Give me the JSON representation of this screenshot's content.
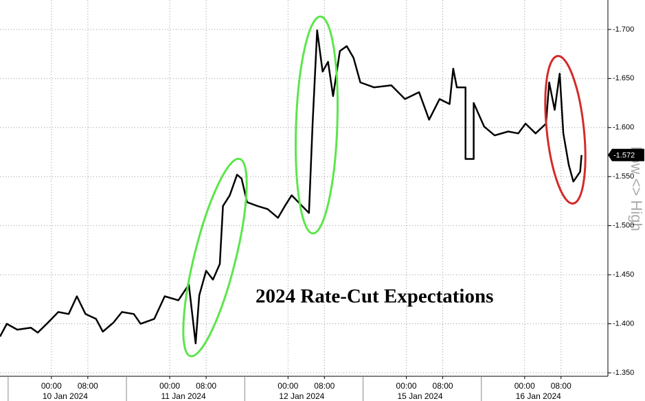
{
  "chart_data": {
    "type": "line",
    "annotation": "2024 Rate-Cut Expectations",
    "y_axis_label": "Low <> High",
    "grid": true,
    "x": [
      -11.3,
      -9.8,
      -7.5,
      -4.5,
      -3.0,
      -0.8,
      1.5,
      3.8,
      5.6,
      7.5,
      9.8,
      11.3,
      13.6,
      15.5,
      18.1,
      19.6,
      22.6,
      24.9,
      27.9,
      30.2,
      31.7,
      32.5,
      34.0,
      35.5,
      37.0,
      37.7,
      39.2,
      40.8,
      41.8,
      43.0,
      45.3,
      47.5,
      49.8,
      51.3,
      52.8,
      55.1,
      56.6,
      57.4,
      58.4,
      59.6,
      60.8,
      61.9,
      63.4,
      64.9,
      66.4,
      67.9,
      70.9,
      74.7,
      77.7,
      80.8,
      83.0,
      85.3,
      87.5,
      88.3,
      89.1,
      91.0,
      91.0,
      92.8,
      92.8,
      95.1,
      97.4,
      100.4,
      102.6,
      104.2,
      106.4,
      108.7,
      109.4,
      110.6,
      111.7,
      112.5,
      113.7,
      114.7,
      116.2,
      116.5
    ],
    "series": [
      {
        "name": "2024 Rate-Cut Expectations",
        "color": "#000000",
        "values": [
          -1.387,
          -1.4,
          -1.394,
          -1.396,
          -1.391,
          -1.401,
          -1.412,
          -1.41,
          -1.428,
          -1.41,
          -1.405,
          -1.392,
          -1.401,
          -1.412,
          -1.41,
          -1.4,
          -1.405,
          -1.428,
          -1.424,
          -1.44,
          -1.38,
          -1.429,
          -1.454,
          -1.445,
          -1.461,
          -1.52,
          -1.531,
          -1.552,
          -1.548,
          -1.524,
          -1.52,
          -1.517,
          -1.508,
          -1.52,
          -1.531,
          -1.52,
          -1.513,
          -1.604,
          -1.699,
          -1.657,
          -1.667,
          -1.632,
          -1.678,
          -1.683,
          -1.671,
          -1.646,
          -1.641,
          -1.643,
          -1.629,
          -1.636,
          -1.608,
          -1.629,
          -1.624,
          -1.66,
          -1.641,
          -1.641,
          -1.568,
          -1.568,
          -1.625,
          -1.601,
          -1.592,
          -1.596,
          -1.594,
          -1.604,
          -1.594,
          -1.604,
          -1.646,
          -1.618,
          -1.655,
          -1.594,
          -1.562,
          -1.545,
          -1.555,
          -1.572
        ]
      }
    ],
    "last_value": {
      "value": -1.572,
      "label": "-1.572"
    },
    "xlim": [
      -11.3,
      122.3
    ],
    "ylim": [
      -1.3465,
      -1.73
    ],
    "yticks": [
      {
        "value": -1.35,
        "label": "-1.350"
      },
      {
        "value": -1.4,
        "label": "-1.400"
      },
      {
        "value": -1.45,
        "label": "-1.450"
      },
      {
        "value": -1.5,
        "label": "-1.500"
      },
      {
        "value": -1.55,
        "label": "-1.550"
      },
      {
        "value": -1.6,
        "label": "-1.600"
      },
      {
        "value": -1.65,
        "label": "-1.650"
      },
      {
        "value": -1.7,
        "label": "-1.700"
      }
    ],
    "xticks": [
      {
        "value": 0,
        "label": "00:00"
      },
      {
        "value": 8,
        "label": "08:00"
      },
      {
        "value": 26,
        "label": "00:00"
      },
      {
        "value": 34,
        "label": "08:00"
      },
      {
        "value": 52,
        "label": "00:00"
      },
      {
        "value": 60,
        "label": "08:00"
      },
      {
        "value": 78,
        "label": "00:00"
      },
      {
        "value": 86,
        "label": "08:00"
      },
      {
        "value": 104,
        "label": "00:00"
      },
      {
        "value": 112,
        "label": "08:00"
      }
    ],
    "x_date_labels": [
      {
        "value": 0,
        "label": "10 Jan 2024"
      },
      {
        "value": 26,
        "label": "11 Jan 2024"
      },
      {
        "value": 52,
        "label": "12 Jan 2024"
      },
      {
        "value": 78,
        "label": "15 Jan 2024"
      },
      {
        "value": 104,
        "label": "16 Jan 2024"
      }
    ]
  }
}
